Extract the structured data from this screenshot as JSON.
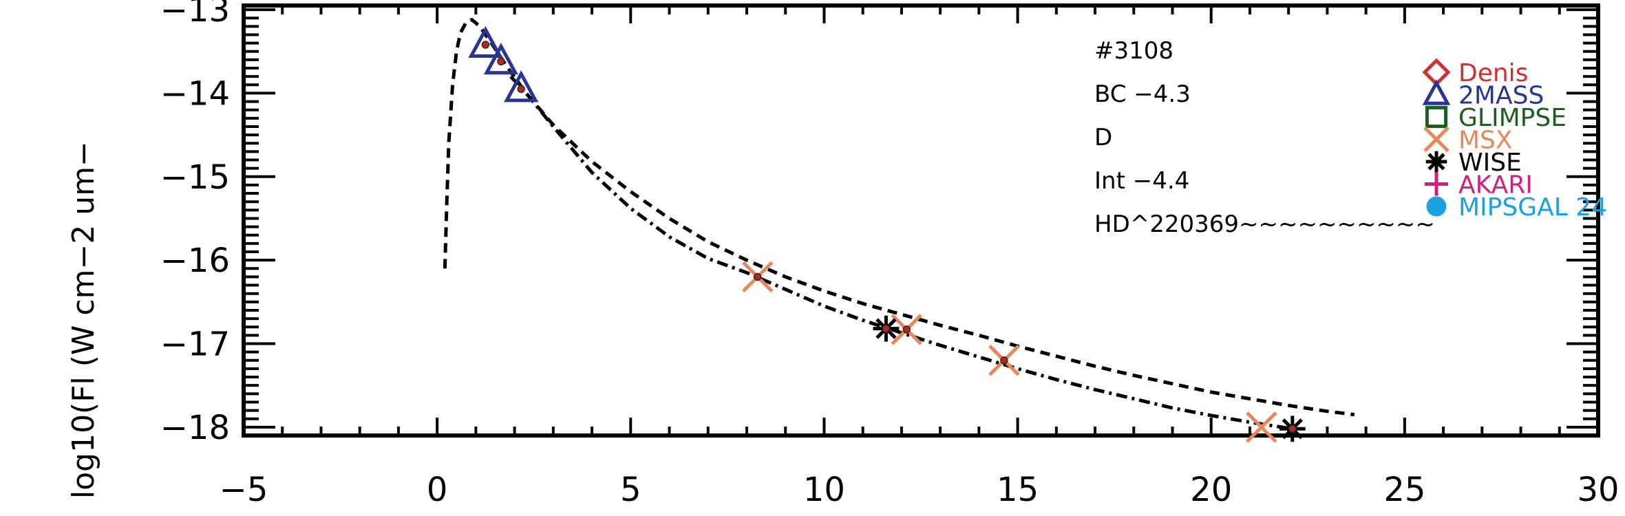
{
  "chart_data": {
    "type": "scatter",
    "title": "",
    "xlabel": "",
    "ylabel": "log10(Fl (W cm−2 um−",
    "xlim": [
      -5,
      30
    ],
    "ylim": [
      -18.1,
      -12.95
    ],
    "x_ticks": [
      {
        "value": -5,
        "label": "−5"
      },
      {
        "value": 0,
        "label": "0"
      },
      {
        "value": 5,
        "label": "5"
      },
      {
        "value": 10,
        "label": "10"
      },
      {
        "value": 15,
        "label": "15"
      },
      {
        "value": 20,
        "label": "20"
      },
      {
        "value": 25,
        "label": "25"
      },
      {
        "value": 30,
        "label": "30"
      }
    ],
    "y_ticks": [
      {
        "value": -13,
        "label": "−13"
      },
      {
        "value": -14,
        "label": "−14"
      },
      {
        "value": -15,
        "label": "−15"
      },
      {
        "value": -16,
        "label": "−16"
      },
      {
        "value": -17,
        "label": "−17"
      },
      {
        "value": -18,
        "label": "−18"
      }
    ],
    "annotations": [
      {
        "text": "#3108"
      },
      {
        "text": "BC −4.3"
      },
      {
        "text": "D"
      },
      {
        "text": "Int −4.4"
      },
      {
        "text": "HD^220369~~~~~~~~~~"
      }
    ],
    "legend": {
      "placement": "right",
      "entries": [
        {
          "label": "Denis",
          "marker": "diamond",
          "color": "#d32f2f"
        },
        {
          "label": "2MASS",
          "marker": "triangle",
          "color": "#283593"
        },
        {
          "label": "GLIMPSE",
          "marker": "square",
          "color": "#1b5e20"
        },
        {
          "label": "MSX",
          "marker": "x",
          "color": "#e8875a"
        },
        {
          "label": "WISE",
          "marker": "asterisk",
          "color": "#000000"
        },
        {
          "label": "AKARI",
          "marker": "plus",
          "color": "#d81b80"
        },
        {
          "label": "MIPSGAL 24",
          "marker": "circle",
          "color": "#1ba1e2"
        }
      ]
    },
    "series": [
      {
        "marker": "triangle",
        "color": "#283593",
        "points": [
          [
            1.25,
            -13.42
          ],
          [
            1.65,
            -13.62
          ],
          [
            2.17,
            -13.95
          ]
        ]
      },
      {
        "marker": "x",
        "color": "#e8875a",
        "points": [
          [
            8.28,
            -16.2
          ],
          [
            12.13,
            -16.83
          ],
          [
            14.65,
            -17.2
          ],
          [
            21.3,
            -18.0
          ]
        ]
      },
      {
        "marker": "asterisk",
        "color": "#000000",
        "points": [
          [
            11.6,
            -16.82
          ],
          [
            22.1,
            -18.02
          ]
        ]
      },
      {
        "marker": "dot",
        "color": "#a0302a",
        "points": [
          [
            1.25,
            -13.42
          ],
          [
            1.65,
            -13.62
          ],
          [
            2.17,
            -13.95
          ],
          [
            8.28,
            -16.2
          ],
          [
            11.6,
            -16.82
          ],
          [
            12.13,
            -16.83
          ],
          [
            14.65,
            -17.2
          ],
          [
            22.1,
            -18.02
          ]
        ]
      }
    ],
    "curves": [
      {
        "style": "dashed",
        "points": [
          [
            0.2,
            -16.1
          ],
          [
            0.25,
            -15.3
          ],
          [
            0.3,
            -14.6
          ],
          [
            0.4,
            -13.9
          ],
          [
            0.5,
            -13.5
          ],
          [
            0.6,
            -13.28
          ],
          [
            0.75,
            -13.15
          ],
          [
            0.9,
            -13.12
          ],
          [
            1.1,
            -13.2
          ],
          [
            1.4,
            -13.4
          ],
          [
            1.8,
            -13.68
          ],
          [
            2.3,
            -14.0
          ],
          [
            3,
            -14.38
          ],
          [
            4,
            -14.82
          ],
          [
            5,
            -15.18
          ],
          [
            6,
            -15.5
          ],
          [
            7,
            -15.78
          ],
          [
            8,
            -16.0
          ],
          [
            9,
            -16.2
          ],
          [
            10,
            -16.37
          ],
          [
            11,
            -16.52
          ],
          [
            12,
            -16.65
          ],
          [
            13,
            -16.78
          ],
          [
            14,
            -16.9
          ],
          [
            15,
            -17.03
          ],
          [
            16,
            -17.15
          ],
          [
            17,
            -17.27
          ],
          [
            18,
            -17.38
          ],
          [
            19,
            -17.48
          ],
          [
            20,
            -17.58
          ],
          [
            21,
            -17.66
          ],
          [
            22,
            -17.74
          ],
          [
            23,
            -17.81
          ],
          [
            23.7,
            -17.85
          ]
        ]
      },
      {
        "style": "dashdot",
        "points": [
          [
            1.9,
            -13.8
          ],
          [
            2.3,
            -14.0
          ],
          [
            3,
            -14.4
          ],
          [
            4,
            -14.95
          ],
          [
            5,
            -15.38
          ],
          [
            6,
            -15.72
          ],
          [
            7,
            -15.98
          ],
          [
            8,
            -16.15
          ],
          [
            9,
            -16.35
          ],
          [
            10,
            -16.55
          ],
          [
            11,
            -16.72
          ],
          [
            12,
            -16.87
          ],
          [
            13,
            -17.02
          ],
          [
            14,
            -17.16
          ],
          [
            15,
            -17.3
          ],
          [
            16,
            -17.43
          ],
          [
            17,
            -17.55
          ],
          [
            18,
            -17.66
          ],
          [
            19,
            -17.77
          ],
          [
            20,
            -17.86
          ],
          [
            21,
            -17.94
          ],
          [
            22.1,
            -18.02
          ]
        ]
      }
    ]
  }
}
